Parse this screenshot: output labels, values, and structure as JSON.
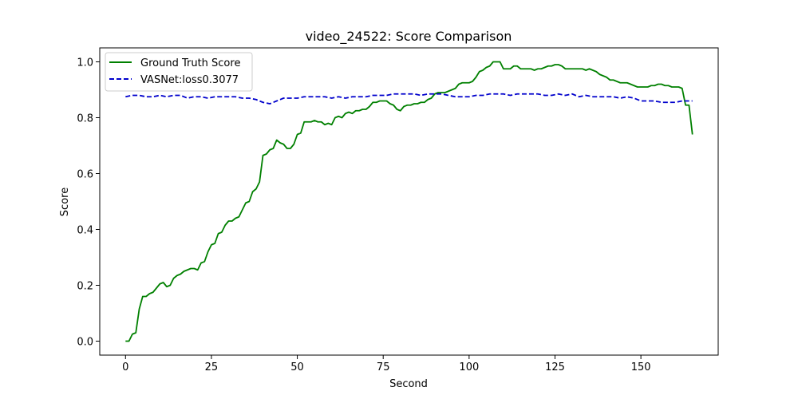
{
  "chart_data": {
    "type": "line",
    "title": "video_24522: Score Comparison",
    "xlabel": "Second",
    "ylabel": "Score",
    "xlim": [
      -7.5,
      172.5
    ],
    "ylim": [
      -0.05,
      1.05
    ],
    "xticks": [
      0,
      25,
      50,
      75,
      100,
      125,
      150
    ],
    "yticks": [
      0.0,
      0.2,
      0.4,
      0.6,
      0.8,
      1.0
    ],
    "tick_labels_x": [
      "0",
      "25",
      "50",
      "75",
      "100",
      "125",
      "150"
    ],
    "tick_labels_y": [
      "0.0",
      "0.2",
      "0.4",
      "0.6",
      "0.8",
      "1.0"
    ],
    "grid": false,
    "legend_position": "top-left",
    "series": [
      {
        "name": "Ground Truth Score",
        "color": "#008000",
        "style": "solid",
        "points": [
          [
            0,
            0.0
          ],
          [
            1,
            0.0
          ],
          [
            2,
            0.025
          ],
          [
            3,
            0.03
          ],
          [
            4,
            0.115
          ],
          [
            5,
            0.16
          ],
          [
            6,
            0.16
          ],
          [
            7,
            0.17
          ],
          [
            8,
            0.175
          ],
          [
            9,
            0.19
          ],
          [
            10,
            0.205
          ],
          [
            11,
            0.21
          ],
          [
            12,
            0.195
          ],
          [
            13,
            0.2
          ],
          [
            14,
            0.225
          ],
          [
            15,
            0.235
          ],
          [
            16,
            0.24
          ],
          [
            17,
            0.25
          ],
          [
            18,
            0.255
          ],
          [
            19,
            0.26
          ],
          [
            20,
            0.26
          ],
          [
            21,
            0.255
          ],
          [
            22,
            0.28
          ],
          [
            23,
            0.285
          ],
          [
            24,
            0.32
          ],
          [
            25,
            0.345
          ],
          [
            26,
            0.35
          ],
          [
            27,
            0.385
          ],
          [
            28,
            0.39
          ],
          [
            29,
            0.415
          ],
          [
            30,
            0.43
          ],
          [
            31,
            0.43
          ],
          [
            32,
            0.44
          ],
          [
            33,
            0.445
          ],
          [
            34,
            0.47
          ],
          [
            35,
            0.495
          ],
          [
            36,
            0.5
          ],
          [
            37,
            0.535
          ],
          [
            38,
            0.545
          ],
          [
            39,
            0.57
          ],
          [
            40,
            0.665
          ],
          [
            41,
            0.67
          ],
          [
            42,
            0.685
          ],
          [
            43,
            0.69
          ],
          [
            44,
            0.72
          ],
          [
            45,
            0.71
          ],
          [
            46,
            0.705
          ],
          [
            47,
            0.69
          ],
          [
            48,
            0.69
          ],
          [
            49,
            0.705
          ],
          [
            50,
            0.74
          ],
          [
            51,
            0.745
          ],
          [
            52,
            0.785
          ],
          [
            53,
            0.785
          ],
          [
            54,
            0.785
          ],
          [
            55,
            0.79
          ],
          [
            56,
            0.785
          ],
          [
            57,
            0.785
          ],
          [
            58,
            0.775
          ],
          [
            59,
            0.78
          ],
          [
            60,
            0.775
          ],
          [
            61,
            0.8
          ],
          [
            62,
            0.805
          ],
          [
            63,
            0.8
          ],
          [
            64,
            0.815
          ],
          [
            65,
            0.82
          ],
          [
            66,
            0.815
          ],
          [
            67,
            0.825
          ],
          [
            68,
            0.825
          ],
          [
            69,
            0.83
          ],
          [
            70,
            0.83
          ],
          [
            71,
            0.84
          ],
          [
            72,
            0.855
          ],
          [
            73,
            0.855
          ],
          [
            74,
            0.86
          ],
          [
            75,
            0.86
          ],
          [
            76,
            0.86
          ],
          [
            77,
            0.85
          ],
          [
            78,
            0.845
          ],
          [
            79,
            0.83
          ],
          [
            80,
            0.825
          ],
          [
            81,
            0.84
          ],
          [
            82,
            0.845
          ],
          [
            83,
            0.845
          ],
          [
            84,
            0.85
          ],
          [
            85,
            0.85
          ],
          [
            86,
            0.855
          ],
          [
            87,
            0.855
          ],
          [
            88,
            0.865
          ],
          [
            89,
            0.87
          ],
          [
            90,
            0.885
          ],
          [
            91,
            0.89
          ],
          [
            92,
            0.89
          ],
          [
            93,
            0.89
          ],
          [
            94,
            0.895
          ],
          [
            95,
            0.9
          ],
          [
            96,
            0.905
          ],
          [
            97,
            0.92
          ],
          [
            98,
            0.925
          ],
          [
            99,
            0.925
          ],
          [
            100,
            0.925
          ],
          [
            101,
            0.93
          ],
          [
            102,
            0.945
          ],
          [
            103,
            0.965
          ],
          [
            104,
            0.97
          ],
          [
            105,
            0.98
          ],
          [
            106,
            0.985
          ],
          [
            107,
            1.0
          ],
          [
            108,
            1.0
          ],
          [
            109,
            1.0
          ],
          [
            110,
            0.975
          ],
          [
            111,
            0.975
          ],
          [
            112,
            0.975
          ],
          [
            113,
            0.985
          ],
          [
            114,
            0.985
          ],
          [
            115,
            0.975
          ],
          [
            116,
            0.975
          ],
          [
            117,
            0.975
          ],
          [
            118,
            0.975
          ],
          [
            119,
            0.97
          ],
          [
            120,
            0.975
          ],
          [
            121,
            0.975
          ],
          [
            122,
            0.98
          ],
          [
            123,
            0.985
          ],
          [
            124,
            0.985
          ],
          [
            125,
            0.99
          ],
          [
            126,
            0.99
          ],
          [
            127,
            0.985
          ],
          [
            128,
            0.975
          ],
          [
            129,
            0.975
          ],
          [
            130,
            0.975
          ],
          [
            131,
            0.975
          ],
          [
            132,
            0.975
          ],
          [
            133,
            0.975
          ],
          [
            134,
            0.97
          ],
          [
            135,
            0.975
          ],
          [
            136,
            0.97
          ],
          [
            137,
            0.965
          ],
          [
            138,
            0.955
          ],
          [
            139,
            0.95
          ],
          [
            140,
            0.945
          ],
          [
            141,
            0.935
          ],
          [
            142,
            0.935
          ],
          [
            143,
            0.93
          ],
          [
            144,
            0.925
          ],
          [
            145,
            0.925
          ],
          [
            146,
            0.925
          ],
          [
            147,
            0.92
          ],
          [
            148,
            0.915
          ],
          [
            149,
            0.91
          ],
          [
            150,
            0.91
          ],
          [
            151,
            0.91
          ],
          [
            152,
            0.91
          ],
          [
            153,
            0.915
          ],
          [
            154,
            0.915
          ],
          [
            155,
            0.92
          ],
          [
            156,
            0.92
          ],
          [
            157,
            0.915
          ],
          [
            158,
            0.915
          ],
          [
            159,
            0.91
          ],
          [
            160,
            0.91
          ],
          [
            161,
            0.91
          ],
          [
            162,
            0.905
          ],
          [
            163,
            0.845
          ],
          [
            164,
            0.845
          ],
          [
            165,
            0.74
          ]
        ]
      },
      {
        "name": "VASNet:loss0.3077",
        "color": "#0000cc",
        "style": "dashed",
        "points": [
          [
            0,
            0.875
          ],
          [
            2,
            0.88
          ],
          [
            4,
            0.88
          ],
          [
            6,
            0.875
          ],
          [
            8,
            0.875
          ],
          [
            10,
            0.88
          ],
          [
            12,
            0.875
          ],
          [
            14,
            0.88
          ],
          [
            16,
            0.88
          ],
          [
            18,
            0.87
          ],
          [
            20,
            0.875
          ],
          [
            22,
            0.875
          ],
          [
            24,
            0.87
          ],
          [
            26,
            0.875
          ],
          [
            28,
            0.875
          ],
          [
            30,
            0.875
          ],
          [
            32,
            0.875
          ],
          [
            34,
            0.87
          ],
          [
            36,
            0.87
          ],
          [
            38,
            0.865
          ],
          [
            40,
            0.855
          ],
          [
            42,
            0.85
          ],
          [
            44,
            0.86
          ],
          [
            46,
            0.87
          ],
          [
            48,
            0.87
          ],
          [
            50,
            0.87
          ],
          [
            52,
            0.875
          ],
          [
            54,
            0.875
          ],
          [
            56,
            0.875
          ],
          [
            58,
            0.875
          ],
          [
            60,
            0.87
          ],
          [
            62,
            0.875
          ],
          [
            64,
            0.87
          ],
          [
            66,
            0.875
          ],
          [
            68,
            0.875
          ],
          [
            70,
            0.875
          ],
          [
            72,
            0.88
          ],
          [
            74,
            0.88
          ],
          [
            76,
            0.88
          ],
          [
            78,
            0.885
          ],
          [
            80,
            0.885
          ],
          [
            82,
            0.885
          ],
          [
            84,
            0.885
          ],
          [
            86,
            0.88
          ],
          [
            88,
            0.885
          ],
          [
            90,
            0.885
          ],
          [
            92,
            0.885
          ],
          [
            94,
            0.88
          ],
          [
            96,
            0.875
          ],
          [
            98,
            0.875
          ],
          [
            100,
            0.875
          ],
          [
            102,
            0.88
          ],
          [
            104,
            0.88
          ],
          [
            106,
            0.885
          ],
          [
            108,
            0.885
          ],
          [
            110,
            0.885
          ],
          [
            112,
            0.88
          ],
          [
            114,
            0.885
          ],
          [
            116,
            0.885
          ],
          [
            118,
            0.885
          ],
          [
            120,
            0.885
          ],
          [
            122,
            0.88
          ],
          [
            124,
            0.88
          ],
          [
            126,
            0.885
          ],
          [
            128,
            0.88
          ],
          [
            130,
            0.885
          ],
          [
            132,
            0.875
          ],
          [
            134,
            0.88
          ],
          [
            136,
            0.875
          ],
          [
            138,
            0.875
          ],
          [
            140,
            0.875
          ],
          [
            142,
            0.875
          ],
          [
            144,
            0.87
          ],
          [
            146,
            0.875
          ],
          [
            148,
            0.87
          ],
          [
            150,
            0.86
          ],
          [
            152,
            0.86
          ],
          [
            154,
            0.86
          ],
          [
            156,
            0.855
          ],
          [
            158,
            0.855
          ],
          [
            160,
            0.855
          ],
          [
            162,
            0.86
          ],
          [
            164,
            0.86
          ],
          [
            165,
            0.86
          ]
        ]
      }
    ]
  }
}
